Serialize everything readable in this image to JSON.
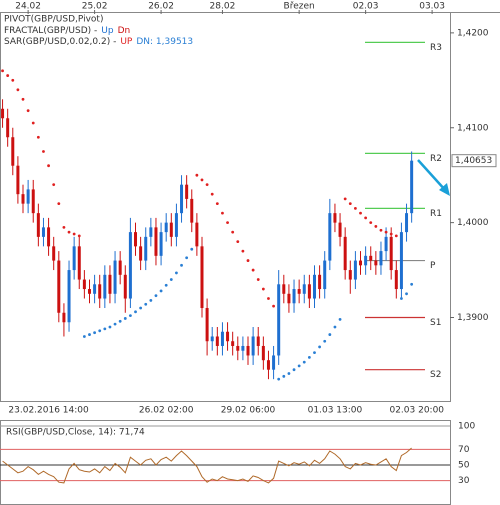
{
  "chart_data": {
    "type": "candlestick",
    "legend": [
      {
        "text": "PIVOT(GBP/USD,Pivot)"
      },
      {
        "text": "FRACTAL(GBP/USD) -",
        "up": "Up",
        "dn": "Dn"
      },
      {
        "text": "SAR(GBP/USD,0.02,0.2) -",
        "up": "UP",
        "dn": "DN: 1,39513"
      }
    ],
    "top_categories": [
      null,
      null,
      null,
      null,
      null,
      "24.02",
      null,
      null,
      null,
      null,
      null,
      null,
      null,
      null,
      null,
      null,
      null,
      null,
      "25.02",
      null,
      null,
      null,
      null,
      null,
      null,
      null,
      null,
      null,
      null,
      null,
      null,
      "26.02",
      null,
      null,
      null,
      null,
      null,
      null,
      null,
      null,
      null,
      null,
      null,
      "28.02",
      null,
      null,
      null,
      null,
      null,
      null,
      null,
      null,
      null,
      null,
      null,
      null,
      null,
      null,
      "Březen",
      null,
      null,
      null,
      null,
      null,
      null,
      null,
      null,
      null,
      null,
      null,
      null,
      "02.03",
      null,
      null,
      null,
      null,
      null,
      null,
      null,
      null,
      null,
      null,
      null,
      null,
      "03.03",
      null,
      null,
      null
    ],
    "categories": [
      null,
      null,
      null,
      null,
      null,
      null,
      null,
      null,
      null,
      "23.02.2016 14:00",
      null,
      null,
      null,
      null,
      null,
      null,
      null,
      null,
      null,
      null,
      null,
      null,
      null,
      null,
      null,
      null,
      null,
      null,
      null,
      null,
      null,
      null,
      "26.02 02:00",
      null,
      null,
      null,
      null,
      null,
      null,
      null,
      null,
      null,
      null,
      null,
      null,
      null,
      null,
      null,
      "29.02 06:00",
      null,
      null,
      null,
      null,
      null,
      null,
      null,
      null,
      null,
      null,
      null,
      null,
      null,
      null,
      null,
      null,
      "01.03 13:00",
      null,
      null,
      null,
      null,
      null,
      null,
      null,
      null,
      null,
      null,
      null,
      null,
      null,
      null,
      null,
      "02.03 20:00",
      null,
      null,
      null,
      null,
      null,
      null
    ],
    "open": [
      1.412,
      1.411,
      1.409,
      1.406,
      1.403,
      1.402,
      1.4035,
      1.401,
      1.3985,
      1.3995,
      1.3975,
      1.396,
      1.3905,
      1.3895,
      1.395,
      1.3975,
      1.394,
      1.393,
      1.3925,
      1.3935,
      1.392,
      1.3945,
      1.3925,
      1.396,
      1.3945,
      1.392,
      1.399,
      1.3975,
      1.396,
      1.3985,
      1.3995,
      1.3965,
      1.399,
      1.4,
      1.3985,
      1.401,
      1.404,
      1.4025,
      1.4,
      1.3975,
      1.391,
      1.3875,
      1.388,
      1.387,
      1.3885,
      1.3875,
      1.387,
      1.3865,
      1.387,
      1.386,
      1.388,
      1.387,
      1.3855,
      1.3845,
      1.386,
      1.3935,
      1.3925,
      1.3915,
      1.393,
      1.3925,
      1.3935,
      1.392,
      1.3945,
      1.393,
      1.396,
      1.401,
      1.4,
      1.3985,
      1.395,
      1.394,
      1.396,
      1.3955,
      1.3965,
      1.396,
      1.3955,
      1.397,
      1.3985,
      1.395,
      1.393,
      1.399,
      1.401,
      null,
      null,
      null,
      null,
      null,
      null,
      null
    ],
    "high": [
      1.413,
      1.412,
      1.41,
      1.407,
      1.404,
      1.4045,
      1.4045,
      1.402,
      1.4005,
      1.4005,
      1.3985,
      1.397,
      1.3915,
      1.396,
      1.3985,
      1.3985,
      1.395,
      1.394,
      1.3945,
      1.3945,
      1.3955,
      1.3955,
      1.397,
      1.397,
      1.3955,
      1.4005,
      1.4,
      1.3985,
      1.3995,
      1.4005,
      1.4005,
      1.4,
      1.401,
      1.401,
      1.402,
      1.405,
      1.405,
      1.4035,
      1.401,
      1.3985,
      1.392,
      1.389,
      1.389,
      1.3895,
      1.3895,
      1.3885,
      1.388,
      1.388,
      1.388,
      1.389,
      1.389,
      1.388,
      1.3865,
      1.387,
      1.395,
      1.3945,
      1.3935,
      1.394,
      1.394,
      1.3945,
      1.3945,
      1.3955,
      1.3955,
      1.397,
      1.4025,
      1.402,
      1.401,
      1.3995,
      1.396,
      1.397,
      1.397,
      1.3975,
      1.3975,
      1.397,
      1.398,
      1.3995,
      1.3995,
      1.396,
      1.4,
      1.402,
      1.4075,
      null,
      null,
      null,
      null,
      null,
      null,
      null
    ],
    "low": [
      1.41,
      1.408,
      1.405,
      1.402,
      1.401,
      1.401,
      1.4,
      1.3975,
      1.3975,
      1.3965,
      1.395,
      1.3895,
      1.388,
      1.3885,
      1.394,
      1.393,
      1.392,
      1.3915,
      1.3915,
      1.391,
      1.391,
      1.3915,
      1.3915,
      1.3935,
      1.3905,
      1.391,
      1.3965,
      1.395,
      1.395,
      1.3975,
      1.3955,
      1.3955,
      1.398,
      1.3975,
      1.3975,
      1.4,
      1.4015,
      1.399,
      1.3965,
      1.39,
      1.386,
      1.3865,
      1.386,
      1.386,
      1.3865,
      1.386,
      1.3855,
      1.3855,
      1.385,
      1.385,
      1.386,
      1.3845,
      1.3835,
      1.3835,
      1.385,
      1.3915,
      1.3905,
      1.3905,
      1.3915,
      1.3915,
      1.391,
      1.391,
      1.392,
      1.392,
      1.395,
      1.399,
      1.3975,
      1.394,
      1.3925,
      1.393,
      1.3945,
      1.3945,
      1.395,
      1.3945,
      1.3945,
      1.396,
      1.394,
      1.392,
      1.392,
      1.398,
      1.4,
      null,
      null,
      null,
      null,
      null,
      null,
      null
    ],
    "close": [
      1.411,
      1.409,
      1.406,
      1.403,
      1.402,
      1.4035,
      1.401,
      1.3985,
      1.3995,
      1.3975,
      1.396,
      1.3905,
      1.3895,
      1.395,
      1.3975,
      1.394,
      1.393,
      1.3925,
      1.3935,
      1.392,
      1.3945,
      1.3925,
      1.396,
      1.3945,
      1.392,
      1.399,
      1.3975,
      1.396,
      1.3985,
      1.3995,
      1.3965,
      1.399,
      1.4,
      1.3985,
      1.401,
      1.404,
      1.4025,
      1.4,
      1.3975,
      1.391,
      1.3875,
      1.388,
      1.387,
      1.3885,
      1.3875,
      1.387,
      1.3865,
      1.387,
      1.386,
      1.388,
      1.387,
      1.3855,
      1.3845,
      1.386,
      1.3935,
      1.3925,
      1.3915,
      1.393,
      1.3925,
      1.3935,
      1.392,
      1.3945,
      1.393,
      1.396,
      1.401,
      1.4,
      1.3985,
      1.395,
      1.394,
      1.396,
      1.3955,
      1.3965,
      1.396,
      1.3955,
      1.397,
      1.3985,
      1.395,
      1.393,
      1.399,
      1.401,
      1.40653,
      null,
      null,
      null,
      null,
      null,
      null,
      null
    ],
    "last_price_label": "1,40653",
    "up_color": "#1e6fd0",
    "down_color": "#cc1010",
    "ylim": [
      1.3812,
      1.4222
    ],
    "yticks": [
      {
        "value": 1.42,
        "label": "1,4200"
      },
      {
        "value": 1.41,
        "label": "1,4100"
      },
      {
        "value": 1.4,
        "label": "1,4000"
      },
      {
        "value": 1.39,
        "label": "1,3900"
      }
    ],
    "sar": {
      "above_color": "#e02020",
      "below_color": "#2a7fd4",
      "values": [
        1.416,
        1.4155,
        1.415,
        1.414,
        1.413,
        1.4118,
        1.4105,
        1.409,
        1.4075,
        1.406,
        1.404,
        1.402,
        1.3995,
        1.399,
        1.3988,
        1.3986,
        1.388,
        1.3882,
        1.3884,
        1.3886,
        1.3888,
        1.389,
        1.3893,
        1.3896,
        1.3899,
        1.3902,
        1.3906,
        1.391,
        1.3914,
        1.3918,
        1.3923,
        1.3928,
        1.3934,
        1.394,
        1.3947,
        1.3955,
        1.3963,
        1.3972,
        1.405,
        1.4045,
        1.404,
        1.403,
        1.402,
        1.401,
        1.4,
        1.399,
        1.398,
        1.397,
        1.396,
        1.395,
        1.394,
        1.393,
        1.392,
        1.3912,
        1.3835,
        1.3838,
        1.3841,
        1.3845,
        1.3849,
        1.3853,
        1.3858,
        1.3863,
        1.3869,
        1.3875,
        1.3882,
        1.389,
        1.3898,
        1.4025,
        1.402,
        1.4015,
        1.401,
        1.4005,
        1.4,
        1.3996,
        1.3992,
        1.399,
        1.3988,
        1.3986,
        1.392,
        1.3925,
        1.3935,
        null,
        null,
        null,
        null,
        null,
        null,
        null
      ]
    },
    "pivots": [
      {
        "name": "R3",
        "value": 1.419,
        "color": "#55cc55"
      },
      {
        "name": "R2",
        "value": 1.4073,
        "color": "#55cc55"
      },
      {
        "name": "R1",
        "value": 1.4015,
        "color": "#55cc55"
      },
      {
        "name": "P",
        "value": 1.396,
        "color": "#888888"
      },
      {
        "name": "S1",
        "value": 1.39,
        "color": "#cc3333"
      },
      {
        "name": "S2",
        "value": 1.3845,
        "color": "#cc3333"
      }
    ],
    "rsi": {
      "title": "RSI(GBP/USD,Close, 14): 71,74",
      "color": "#b06a2a",
      "ylim": [
        0,
        100
      ],
      "yticks": [
        100,
        70,
        50,
        30
      ],
      "tick_colors": [
        "#999999",
        "#e06060",
        "#333333",
        "#e06060"
      ],
      "values": [
        55,
        50,
        45,
        40,
        42,
        48,
        44,
        38,
        42,
        38,
        35,
        28,
        27,
        45,
        52,
        44,
        42,
        41,
        45,
        40,
        48,
        43,
        52,
        47,
        40,
        60,
        55,
        50,
        56,
        58,
        50,
        57,
        60,
        55,
        62,
        68,
        62,
        55,
        48,
        35,
        28,
        32,
        30,
        35,
        32,
        31,
        30,
        32,
        29,
        36,
        34,
        30,
        27,
        33,
        55,
        52,
        49,
        53,
        51,
        54,
        49,
        56,
        52,
        58,
        68,
        64,
        58,
        48,
        45,
        52,
        50,
        53,
        51,
        50,
        54,
        58,
        48,
        43,
        62,
        66,
        71.74,
        null,
        null,
        null,
        null,
        null,
        null,
        null
      ]
    }
  }
}
